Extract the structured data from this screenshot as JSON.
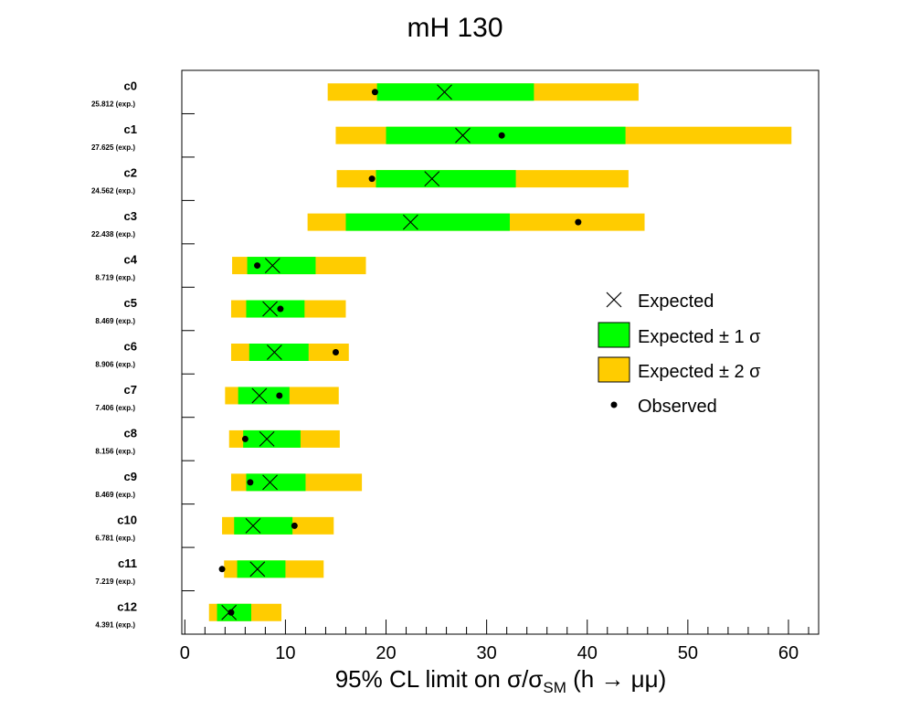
{
  "chart_data": {
    "type": "limit-bars",
    "title": "mH 130",
    "xlabel_parts": {
      "prefix": "95% CL limit on σ/σ",
      "subscript": "SM",
      "suffix": " (h → μμ)"
    },
    "xlim": [
      -0.3,
      63.0
    ],
    "xticks": [
      0,
      10,
      20,
      30,
      40,
      50,
      60
    ],
    "legend": {
      "placement": "right",
      "expected": "Expected",
      "one_sigma": "Expected ± 1 σ",
      "two_sigma": "Expected ± 2 σ",
      "observed": "Observed"
    },
    "colors": {
      "one_sigma": "#00ff00",
      "two_sigma": "#ffcc00",
      "marker": "#000000",
      "frame": "#000000"
    },
    "categories": [
      {
        "name": "c0",
        "sublabel": "25.812 (exp.)",
        "expected": 25.812,
        "observed": 18.9,
        "one_sigma": [
          19.1,
          34.7
        ],
        "two_sigma": [
          14.2,
          45.1
        ]
      },
      {
        "name": "c1",
        "sublabel": "27.625 (exp.)",
        "expected": 27.625,
        "observed": 31.5,
        "one_sigma": [
          20.0,
          43.8
        ],
        "two_sigma": [
          15.0,
          60.3
        ]
      },
      {
        "name": "c2",
        "sublabel": "24.562 (exp.)",
        "expected": 24.562,
        "observed": 18.6,
        "one_sigma": [
          19.0,
          32.9
        ],
        "two_sigma": [
          15.1,
          44.1
        ]
      },
      {
        "name": "c3",
        "sublabel": "22.438 (exp.)",
        "expected": 22.438,
        "observed": 39.1,
        "one_sigma": [
          16.0,
          32.3
        ],
        "two_sigma": [
          12.2,
          45.7
        ]
      },
      {
        "name": "c4",
        "sublabel": "8.719 (exp.)",
        "expected": 8.719,
        "observed": 7.2,
        "one_sigma": [
          6.2,
          13.0
        ],
        "two_sigma": [
          4.7,
          18.0
        ]
      },
      {
        "name": "c5",
        "sublabel": "8.469 (exp.)",
        "expected": 8.469,
        "observed": 9.5,
        "one_sigma": [
          6.1,
          11.9
        ],
        "two_sigma": [
          4.6,
          16.0
        ]
      },
      {
        "name": "c6",
        "sublabel": "8.906 (exp.)",
        "expected": 8.906,
        "observed": 15.0,
        "one_sigma": [
          6.4,
          12.3
        ],
        "two_sigma": [
          4.6,
          16.3
        ]
      },
      {
        "name": "c7",
        "sublabel": "7.406 (exp.)",
        "expected": 7.406,
        "observed": 9.4,
        "one_sigma": [
          5.3,
          10.4
        ],
        "two_sigma": [
          4.0,
          15.3
        ]
      },
      {
        "name": "c8",
        "sublabel": "8.156 (exp.)",
        "expected": 8.156,
        "observed": 6.0,
        "one_sigma": [
          5.8,
          11.5
        ],
        "two_sigma": [
          4.4,
          15.4
        ]
      },
      {
        "name": "c9",
        "sublabel": "8.469 (exp.)",
        "expected": 8.469,
        "observed": 6.5,
        "one_sigma": [
          6.1,
          12.0
        ],
        "two_sigma": [
          4.6,
          17.6
        ]
      },
      {
        "name": "c10",
        "sublabel": "6.781 (exp.)",
        "expected": 6.781,
        "observed": 10.9,
        "one_sigma": [
          4.9,
          10.7
        ],
        "two_sigma": [
          3.7,
          14.8
        ]
      },
      {
        "name": "c11",
        "sublabel": "7.219 (exp.)",
        "expected": 7.219,
        "observed": 3.7,
        "one_sigma": [
          5.2,
          10.0
        ],
        "two_sigma": [
          3.9,
          13.8
        ]
      },
      {
        "name": "c12",
        "sublabel": "4.391 (exp.)",
        "expected": 4.391,
        "observed": 4.6,
        "one_sigma": [
          3.2,
          6.6
        ],
        "two_sigma": [
          2.4,
          9.6
        ]
      }
    ]
  }
}
